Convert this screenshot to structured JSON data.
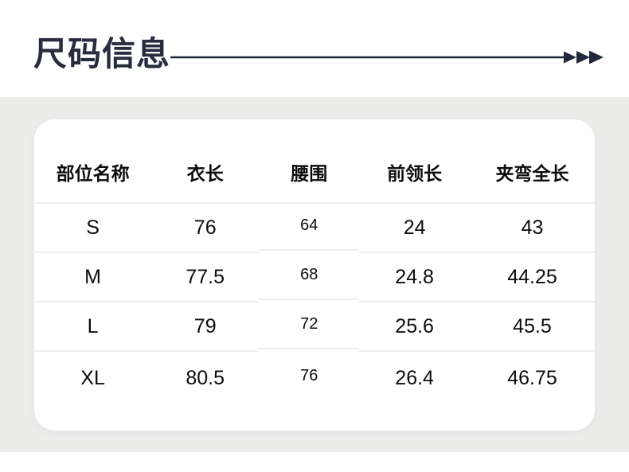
{
  "page": {
    "title": "尺码信息",
    "decor": {
      "arrow_icon": "triple-arrow-right"
    },
    "colors": {
      "title_text": "#272c3e",
      "background_band": "#ececeb",
      "card": "#ffffff",
      "divider": "#ededed",
      "table_text": "#0d0d0d"
    }
  },
  "size_table": {
    "columns": [
      "部位名称",
      "衣长",
      "腰围",
      "前领长",
      "夹弯全长"
    ],
    "rows": [
      {
        "size": "S",
        "values": [
          "76",
          "64",
          "24",
          "43"
        ]
      },
      {
        "size": "M",
        "values": [
          "77.5",
          "68",
          "24.8",
          "44.25"
        ]
      },
      {
        "size": "L",
        "values": [
          "79",
          "72",
          "25.6",
          "45.5"
        ]
      },
      {
        "size": "XL",
        "values": [
          "80.5",
          "76",
          "26.4",
          "46.75"
        ]
      }
    ]
  }
}
